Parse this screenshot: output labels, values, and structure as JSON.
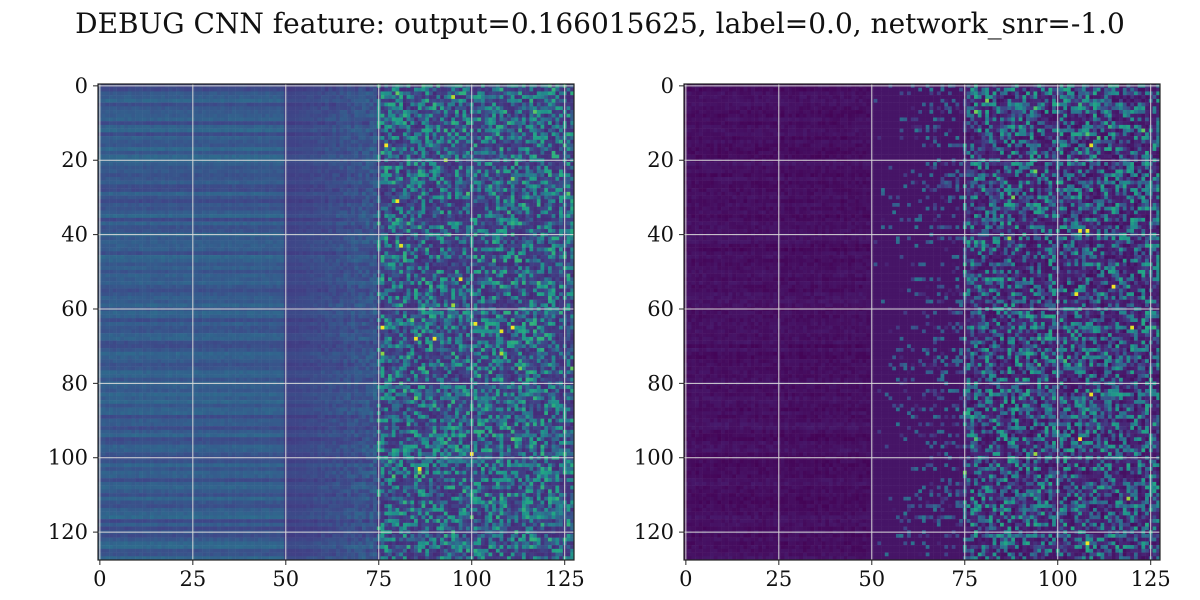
{
  "title": "DEBUG CNN feature: output=0.166015625, label=0.0, network_snr=-1.0",
  "colors": {
    "colormap": "viridis",
    "grid": "#d9d9d9",
    "frame": "#222222"
  },
  "chart_data": [
    {
      "type": "heatmap",
      "title": "",
      "xlabel": "",
      "ylabel": "",
      "xlim": [
        0,
        127
      ],
      "ylim": [
        127,
        0
      ],
      "x_ticks": [
        0,
        25,
        50,
        75,
        100,
        125
      ],
      "y_ticks": [
        0,
        20,
        40,
        60,
        80,
        100,
        120
      ],
      "x_tick_labels": [
        "0",
        "25",
        "50",
        "75",
        "100",
        "125"
      ],
      "y_tick_labels": [
        "0",
        "20",
        "40",
        "60",
        "80",
        "100",
        "120"
      ],
      "grid": true,
      "colormap": "viridis",
      "grid_shape": [
        128,
        128
      ],
      "value_range": [
        0,
        1
      ],
      "profile": {
        "description": "bands",
        "low_cols_level": 0.28,
        "mid_cols_level": 0.2,
        "high_cols_level": 0.3,
        "noise": 0.18,
        "bright_cells": [
          [
            65,
            76
          ],
          [
            68,
            90
          ],
          [
            103,
            86
          ],
          [
            31,
            80
          ],
          [
            43,
            81
          ],
          [
            52,
            97
          ],
          [
            16,
            77
          ],
          [
            65,
            111
          ],
          [
            64,
            101
          ],
          [
            66,
            108
          ],
          [
            68,
            85
          ],
          [
            99,
            100
          ]
        ]
      }
    },
    {
      "type": "heatmap",
      "title": "",
      "xlabel": "",
      "ylabel": "",
      "xlim": [
        0,
        127
      ],
      "ylim": [
        127,
        0
      ],
      "x_ticks": [
        0,
        25,
        50,
        75,
        100,
        125
      ],
      "y_ticks": [
        0,
        20,
        40,
        60,
        80,
        100,
        120
      ],
      "x_tick_labels": [
        "0",
        "25",
        "50",
        "75",
        "100",
        "125"
      ],
      "y_tick_labels": [
        "0",
        "20",
        "40",
        "60",
        "80",
        "100",
        "120"
      ],
      "grid": true,
      "colormap": "viridis",
      "grid_shape": [
        128,
        128
      ],
      "value_range": [
        0,
        1
      ],
      "profile": {
        "description": "dark-left",
        "low_cols_level": 0.04,
        "mid_cols_level": 0.06,
        "high_cols_level": 0.3,
        "noise": 0.22,
        "bright_cells": [
          [
            16,
            109
          ],
          [
            39,
            106
          ],
          [
            39,
            108
          ],
          [
            56,
            105
          ],
          [
            83,
            109
          ],
          [
            95,
            106
          ],
          [
            123,
            108
          ],
          [
            54,
            115
          ],
          [
            65,
            120
          ]
        ]
      }
    }
  ]
}
